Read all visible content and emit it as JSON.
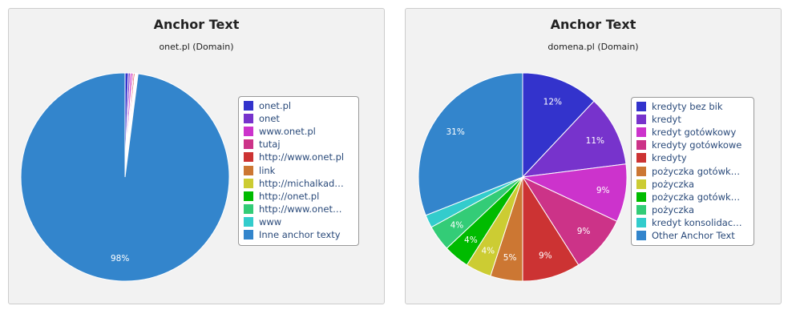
{
  "chart_data": [
    {
      "type": "pie",
      "title": "Anchor Text",
      "subtitle": "onet.pl (Domain)",
      "legend_position": "right",
      "labels": [
        "onet.pl",
        "onet",
        "www.onet.pl",
        "tutaj",
        "http://www.onet.pl",
        "link",
        "http://michalkad…",
        "http://onet.pl",
        "http://www.onet…",
        "www",
        "Inne anchor texty"
      ],
      "values": [
        0.5,
        0.3,
        0.3,
        0.2,
        0.2,
        0.1,
        0.1,
        0.1,
        0.1,
        0.1,
        98.0
      ],
      "data_labels": [
        "",
        "",
        "",
        "",
        "",
        "",
        "",
        "",
        "",
        "",
        "98%"
      ],
      "colors": [
        "#3333cc",
        "#7733cc",
        "#cc33cc",
        "#cc3388",
        "#cc3333",
        "#cc7733",
        "#cccc33",
        "#00bb00",
        "#33cc77",
        "#33cccc",
        "#3385cc"
      ]
    },
    {
      "type": "pie",
      "title": "Anchor Text",
      "subtitle": "domena.pl (Domain)",
      "legend_position": "right",
      "labels": [
        "kredyty bez bik",
        "kredyt",
        "kredyt gotówkowy",
        "kredyty gotówkowe",
        "kredyty",
        "pożyczka gotówk…",
        "pożyczka",
        "pożyczka gotówk…",
        "pożyczka",
        "kredyt konsolidac…",
        "Other Anchor Text"
      ],
      "values": [
        12,
        11,
        9,
        9,
        9,
        5,
        4,
        4,
        4,
        2,
        31
      ],
      "data_labels": [
        "12%",
        "11%",
        "9%",
        "9%",
        "9%",
        "5%",
        "4%",
        "4%",
        "4%",
        "",
        "31%"
      ],
      "colors": [
        "#3333cc",
        "#7733cc",
        "#cc33cc",
        "#cc3388",
        "#cc3333",
        "#cc7733",
        "#cccc33",
        "#00bb00",
        "#33cc77",
        "#33cccc",
        "#3385cc"
      ]
    }
  ]
}
